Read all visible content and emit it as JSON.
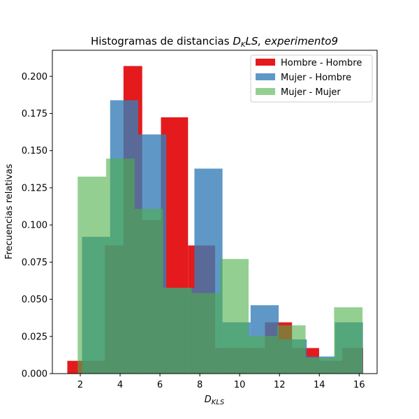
{
  "chart_data": {
    "type": "histogram",
    "title_plain": "Histogramas de distancias ",
    "title_math": "D",
    "title_math_sub": "K",
    "title_math_rest": "LS, experimento9",
    "xlabel_main": "D",
    "xlabel_sub": "KLS",
    "ylabel": "Frecuencias relativas",
    "xlim": [
      0.6,
      16.9
    ],
    "ylim": [
      0,
      0.2175
    ],
    "xticks": [
      2,
      4,
      6,
      8,
      10,
      12,
      14,
      16
    ],
    "yticks": [
      0.0,
      0.025,
      0.05,
      0.075,
      0.1,
      0.125,
      0.15,
      0.175,
      0.2
    ],
    "legend_position": "upper right",
    "series": [
      {
        "name": "Hombre - Hombre",
        "color": "#e41a1c",
        "alpha": 1.0,
        "bins": [
          {
            "x0": 1.35,
            "x1": 2.29,
            "y": 0.0086
          },
          {
            "x0": 2.29,
            "x1": 3.23,
            "y": 0.0086
          },
          {
            "x0": 3.23,
            "x1": 4.17,
            "y": 0.0862
          },
          {
            "x0": 4.17,
            "x1": 5.11,
            "y": 0.2069
          },
          {
            "x0": 5.11,
            "x1": 6.05,
            "y": 0.1034
          },
          {
            "x0": 6.05,
            "x1": 7.41,
            "y": 0.1724
          },
          {
            "x0": 7.41,
            "x1": 8.77,
            "y": 0.0862
          },
          {
            "x0": 8.77,
            "x1": 10.13,
            "y": 0.0172
          },
          {
            "x0": 10.13,
            "x1": 11.27,
            "y": 0.0172
          },
          {
            "x0": 11.27,
            "x1": 12.63,
            "y": 0.0345
          },
          {
            "x0": 12.63,
            "x1": 13.99,
            "y": 0.0172
          },
          {
            "x0": 13.99,
            "x1": 15.15,
            "y": 0.0086
          },
          {
            "x0": 15.15,
            "x1": 16.2,
            "y": 0.0172
          }
        ]
      },
      {
        "name": "Mujer - Hombre",
        "color": "#377eb8",
        "alpha": 0.8,
        "bins": [
          {
            "x0": 2.09,
            "x1": 3.5,
            "y": 0.092
          },
          {
            "x0": 3.5,
            "x1": 4.91,
            "y": 0.1839
          },
          {
            "x0": 4.91,
            "x1": 6.32,
            "y": 0.1609
          },
          {
            "x0": 6.32,
            "x1": 7.73,
            "y": 0.0575
          },
          {
            "x0": 7.73,
            "x1": 9.14,
            "y": 0.1379
          },
          {
            "x0": 9.14,
            "x1": 10.55,
            "y": 0.0345
          },
          {
            "x0": 10.55,
            "x1": 11.96,
            "y": 0.046
          },
          {
            "x0": 11.96,
            "x1": 13.37,
            "y": 0.023
          },
          {
            "x0": 13.37,
            "x1": 14.78,
            "y": 0.0115
          },
          {
            "x0": 14.78,
            "x1": 16.19,
            "y": 0.0345
          }
        ]
      },
      {
        "name": "Mujer - Mujer",
        "color": "#4daf4a",
        "alpha": 0.6,
        "bins": [
          {
            "x0": 1.87,
            "x1": 3.3,
            "y": 0.1325
          },
          {
            "x0": 3.3,
            "x1": 4.73,
            "y": 0.1446
          },
          {
            "x0": 4.73,
            "x1": 6.16,
            "y": 0.1108
          },
          {
            "x0": 6.16,
            "x1": 7.59,
            "y": 0.0578
          },
          {
            "x0": 7.59,
            "x1": 9.02,
            "y": 0.0542
          },
          {
            "x0": 9.02,
            "x1": 10.45,
            "y": 0.0771
          },
          {
            "x0": 10.45,
            "x1": 11.88,
            "y": 0.0253
          },
          {
            "x0": 11.88,
            "x1": 13.31,
            "y": 0.0325
          },
          {
            "x0": 13.31,
            "x1": 14.74,
            "y": 0.0108
          },
          {
            "x0": 14.74,
            "x1": 16.17,
            "y": 0.0446
          }
        ]
      }
    ]
  }
}
